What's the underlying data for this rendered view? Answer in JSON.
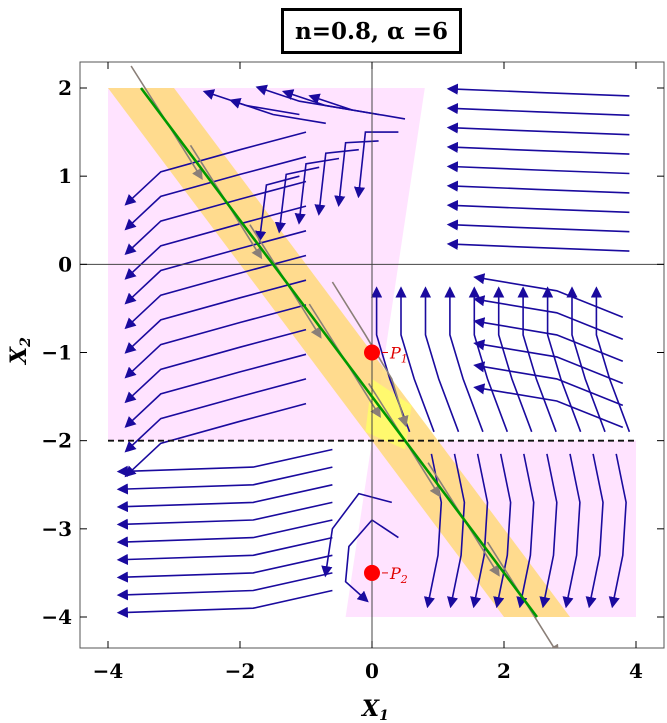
{
  "chart_data": {
    "type": "streamplot",
    "title": "n=0.8, α =6",
    "xlabel": {
      "main": "X",
      "sub": "1"
    },
    "ylabel": {
      "main": "X",
      "sub": "2"
    },
    "xlim": [
      -4.4,
      4.4
    ],
    "ylim": [
      -4.35,
      2.3
    ],
    "xticks": [
      -4,
      -2,
      0,
      2,
      4
    ],
    "yticks": [
      2,
      1,
      0,
      -1,
      -2,
      -3,
      -4
    ],
    "tick_labels_x": [
      "−4",
      "−2",
      "0",
      "2",
      "4"
    ],
    "tick_labels_y": [
      "2",
      "1",
      "0",
      "−1",
      "−2",
      "−3",
      "−4"
    ],
    "points": [
      {
        "name": "P",
        "sub": "1",
        "x": 0,
        "y": -1.0,
        "color": "#ff0000"
      },
      {
        "name": "P",
        "sub": "2",
        "x": 0,
        "y": -3.5,
        "color": "#ff0000"
      }
    ],
    "dashed_line": {
      "y": -2,
      "x_range": [
        -4,
        4
      ]
    },
    "green_line": {
      "points": [
        [
          -3.5,
          2
        ],
        [
          2.5,
          -4
        ]
      ],
      "color": "#009900"
    },
    "regions": {
      "pink_upper": {
        "polygon": [
          [
            -4,
            2
          ],
          [
            0.8,
            2
          ],
          [
            0,
            -2
          ],
          [
            -4,
            -2
          ]
        ],
        "color": "#ffd7ff"
      },
      "pink_lower": {
        "polygon": [
          [
            0,
            -2
          ],
          [
            4,
            -2
          ],
          [
            4,
            -4
          ],
          [
            -0.4,
            -4
          ]
        ],
        "color": "#ffd7ff"
      },
      "yellow_band": {
        "polygon": [
          [
            -4,
            2
          ],
          [
            -3,
            2
          ],
          [
            3,
            -4
          ],
          [
            2,
            -4
          ]
        ],
        "color": "#ffd97a"
      }
    },
    "field": {
      "description": "flow lines: dX1/dt = -(X1 + 0.5*X2 ... ) approximated",
      "stream_color": "#1a0a9e",
      "stream_color_in_band": "#9a8a80"
    }
  }
}
